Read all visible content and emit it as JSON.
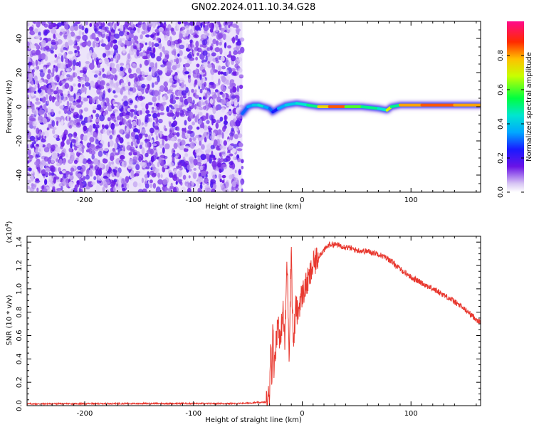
{
  "title": "GN02.2024.011.10.34.G28",
  "chart_data": [
    {
      "type": "heatmap",
      "xlabel": "Height of straight line (km)",
      "ylabel": "Frequency (Hz)",
      "xlim": [
        -253,
        164
      ],
      "ylim": [
        -50,
        50
      ],
      "xticks": [
        -200,
        -100,
        0,
        100
      ],
      "yticks": [
        -40,
        -20,
        0,
        20,
        40
      ],
      "noise_region_x": [
        -253,
        -55
      ],
      "colorbar": {
        "label": "Normalized spectral amplitude",
        "range": [
          0.0,
          1.0
        ],
        "ticks": [
          "0.0",
          "0.2",
          "0.4",
          "0.6",
          "0.8"
        ],
        "tick_values": [
          0.0,
          0.2,
          0.4,
          0.6,
          0.8
        ]
      },
      "ridge": {
        "x": [
          -55,
          -50,
          -45,
          -40,
          -35,
          -30,
          -27,
          -22,
          -15,
          -5,
          5,
          15,
          25,
          40,
          55,
          70,
          78,
          82,
          90,
          110,
          140,
          164
        ],
        "y": [
          -4,
          0,
          1,
          1,
          0,
          -1,
          -3,
          -1,
          1,
          2,
          1,
          0,
          0,
          0,
          0,
          -1,
          -2,
          0,
          1,
          1,
          1,
          1
        ],
        "amplitude": [
          0.3,
          0.35,
          0.4,
          0.45,
          0.35,
          0.3,
          0.25,
          0.35,
          0.4,
          0.45,
          0.5,
          0.75,
          0.85,
          0.6,
          0.5,
          0.45,
          0.7,
          0.5,
          0.8,
          0.85,
          0.8,
          0.7
        ]
      }
    },
    {
      "type": "line",
      "xlabel": "Height of straight line (km)",
      "ylabel": "SNR (10 * v/v)",
      "y_multiplier": "(x10",
      "y_multiplier_exp": "4",
      "y_multiplier_close": ")",
      "xlim": [
        -253,
        164
      ],
      "ylim": [
        0.0,
        1.45
      ],
      "xticks": [
        -200,
        -100,
        0,
        100
      ],
      "yticks": [
        0.0,
        0.2,
        0.4,
        0.6,
        0.8,
        1.0,
        1.2,
        1.4
      ],
      "ytick_labels": [
        "0.0",
        "0.2",
        "0.4",
        "0.6",
        "0.8",
        "1.0",
        "1.2",
        "1.4"
      ],
      "color": "#e8382f",
      "series": [
        {
          "x": [
            -253,
            -150,
            -60,
            -32,
            -30,
            -29,
            -28,
            -27,
            -26,
            -24,
            -22,
            -20,
            -18,
            -16,
            -14,
            -12,
            -10,
            -9,
            -8,
            -6,
            -4,
            -2,
            0,
            3,
            6,
            10,
            15,
            20,
            25,
            30,
            35,
            40,
            50,
            60,
            70,
            80,
            90,
            100,
            110,
            120,
            130,
            140,
            150,
            160,
            164
          ],
          "y": [
            0.015,
            0.018,
            0.018,
            0.03,
            0.12,
            0.6,
            0.25,
            0.65,
            0.35,
            0.55,
            0.75,
            0.5,
            0.85,
            0.55,
            1.25,
            0.45,
            1.38,
            0.8,
            0.5,
            0.85,
            0.78,
            0.9,
            0.95,
            1.02,
            1.08,
            1.2,
            1.28,
            1.33,
            1.38,
            1.38,
            1.37,
            1.36,
            1.33,
            1.32,
            1.3,
            1.25,
            1.17,
            1.1,
            1.05,
            1.0,
            0.95,
            0.89,
            0.82,
            0.74,
            0.71
          ]
        }
      ]
    }
  ]
}
